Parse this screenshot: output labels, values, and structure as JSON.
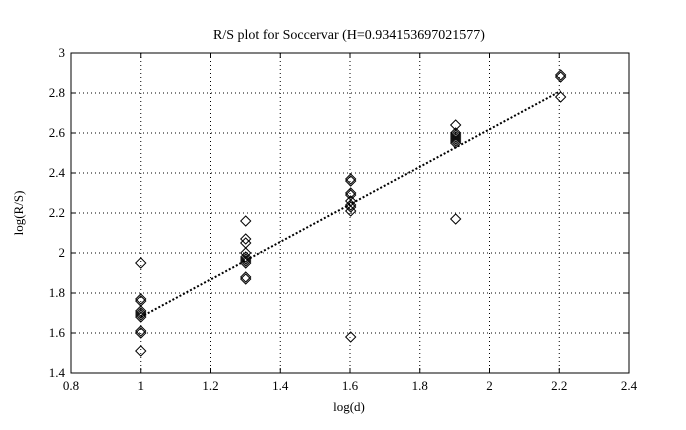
{
  "chart_data": {
    "type": "scatter",
    "title": "R/S plot for Soccervar (H=0.934153697021577)",
    "xlabel": "log(d)",
    "ylabel": "log(R/S)",
    "xlim": [
      0.8,
      2.4
    ],
    "ylim": [
      1.4,
      3.0
    ],
    "x_ticks": [
      0.8,
      1.0,
      1.2,
      1.4,
      1.6,
      1.8,
      2.0,
      2.2,
      2.4
    ],
    "y_ticks": [
      1.4,
      1.6,
      1.8,
      2.0,
      2.2,
      2.4,
      2.6,
      2.8,
      3.0
    ],
    "x_tick_labels": [
      "0.8",
      "1",
      "1.2",
      "1.4",
      "1.6",
      "1.8",
      "2",
      "2.2",
      "2.4"
    ],
    "y_tick_labels": [
      "1.4",
      "1.6",
      "1.8",
      "2",
      "2.2",
      "2.4",
      "2.6",
      "2.8",
      "3"
    ],
    "grid": true,
    "marker": "diamond",
    "points": [
      [
        1.0,
        1.95
      ],
      [
        1.0,
        1.77
      ],
      [
        1.0,
        1.76
      ],
      [
        1.0,
        1.71
      ],
      [
        1.0,
        1.7
      ],
      [
        1.0,
        1.69
      ],
      [
        1.0,
        1.68
      ],
      [
        1.0,
        1.61
      ],
      [
        1.0,
        1.6
      ],
      [
        1.0,
        1.51
      ],
      [
        1.301,
        2.16
      ],
      [
        1.301,
        2.07
      ],
      [
        1.301,
        2.05
      ],
      [
        1.301,
        2.0
      ],
      [
        1.301,
        1.98
      ],
      [
        1.301,
        1.97
      ],
      [
        1.301,
        1.96
      ],
      [
        1.301,
        1.95
      ],
      [
        1.301,
        1.88
      ],
      [
        1.301,
        1.87
      ],
      [
        1.602,
        2.37
      ],
      [
        1.602,
        2.36
      ],
      [
        1.602,
        2.3
      ],
      [
        1.602,
        2.29
      ],
      [
        1.602,
        2.26
      ],
      [
        1.602,
        2.24
      ],
      [
        1.602,
        2.23
      ],
      [
        1.602,
        2.21
      ],
      [
        1.602,
        1.58
      ],
      [
        1.903,
        2.64
      ],
      [
        1.903,
        2.6
      ],
      [
        1.903,
        2.59
      ],
      [
        1.903,
        2.58
      ],
      [
        1.903,
        2.57
      ],
      [
        1.903,
        2.56
      ],
      [
        1.903,
        2.55
      ],
      [
        1.903,
        2.17
      ],
      [
        2.204,
        2.89
      ],
      [
        2.204,
        2.88
      ],
      [
        2.204,
        2.78
      ]
    ],
    "fit_line": {
      "x": [
        1.0,
        2.204
      ],
      "y": [
        1.68,
        2.81
      ]
    }
  }
}
